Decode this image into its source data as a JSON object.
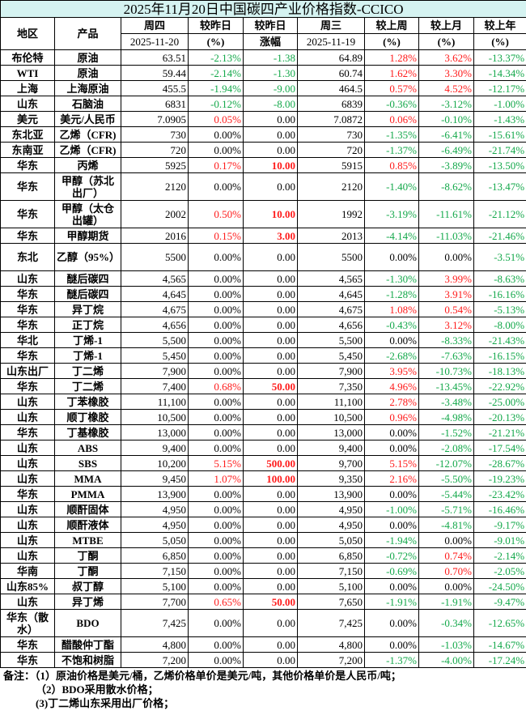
{
  "title": "2025年11月20日中国碳四产业价格指数-CCICO",
  "headers": {
    "region": "地区",
    "product": "产品",
    "thu": "周四",
    "thu_date": "2025-11-20",
    "day_pct": "较昨日",
    "day_pct_unit": "(%)",
    "day_chg": "较昨日",
    "day_chg_unit": "涨幅",
    "wed": "周三",
    "wed_date": "2025-11-19",
    "week": "较上周",
    "week_unit": "(%)",
    "month": "较上月",
    "month_unit": "(%)",
    "year": "较上年",
    "year_unit": "(%)"
  },
  "colors": {
    "up": "#ff1a1a",
    "down": "#13a84a",
    "title_bg": "#d5f3f1"
  },
  "rows": [
    [
      "布伦特",
      "原油",
      "63.51",
      "-2.13%",
      "-1.38",
      "64.89",
      "1.28%",
      "3.62%",
      "-13.37%"
    ],
    [
      "WTI",
      "原油",
      "59.44",
      "-2.14%",
      "-1.30",
      "60.74",
      "1.62%",
      "3.30%",
      "-14.34%"
    ],
    [
      "上海",
      "上海原油",
      "455.5",
      "-1.94%",
      "-9.00",
      "464.5",
      "0.57%",
      "4.52%",
      "-12.17%"
    ],
    [
      "山东",
      "石脑油",
      "6831",
      "-0.12%",
      "-8.00",
      "6839",
      "-0.36%",
      "-3.12%",
      "-1.00%"
    ],
    [
      "美元",
      "美元/人民币",
      "7.0905",
      "0.05%",
      "0.00",
      "7.0872",
      "0.06%",
      "-0.10%",
      "-1.43%"
    ],
    [
      "东北亚",
      "乙烯（CFR)",
      "730",
      "0.00%",
      "0.00",
      "730",
      "-1.35%",
      "-6.41%",
      "-15.61%"
    ],
    [
      "东南亚",
      "乙烯（CFR)",
      "720",
      "0.00%",
      "0.00",
      "720",
      "-1.37%",
      "-6.49%",
      "-21.74%"
    ],
    [
      "华东",
      "丙烯",
      "5925",
      "0.17%",
      "10.00",
      "5915",
      "0.85%",
      "-3.89%",
      "-13.50%"
    ],
    [
      "华东",
      "甲醇（苏北出厂）",
      "2120",
      "0.00%",
      "0.00",
      "2120",
      "-1.40%",
      "-8.62%",
      "-13.47%"
    ],
    [
      "华东",
      "甲醇（太仓出罐）",
      "2002",
      "0.50%",
      "10.00",
      "1992",
      "-3.19%",
      "-11.61%",
      "-21.12%"
    ],
    [
      "华东",
      "甲醇期货",
      "2016",
      "0.15%",
      "3.00",
      "2013",
      "-4.14%",
      "-11.03%",
      "-21.46%"
    ],
    [
      "东北",
      "乙醇（95%）",
      "5500",
      "0.00%",
      "0.00",
      "5500",
      "0.00%",
      "0.00%",
      "-3.51%"
    ],
    [
      "山东",
      "醚后碳四",
      "4,565",
      "0.00%",
      "0.00",
      "4,565",
      "-1.30%",
      "3.99%",
      "-8.63%"
    ],
    [
      "华东",
      "醚后碳四",
      "4,645",
      "0.00%",
      "0.00",
      "4,645",
      "-1.28%",
      "3.91%",
      "-16.16%"
    ],
    [
      "华东",
      "异丁烷",
      "4,675",
      "0.00%",
      "0.00",
      "4,675",
      "1.08%",
      "0.54%",
      "-5.13%"
    ],
    [
      "华东",
      "正丁烷",
      "4,656",
      "0.00%",
      "0.00",
      "4,656",
      "-0.43%",
      "3.12%",
      "-8.00%"
    ],
    [
      "华北",
      "丁烯-1",
      "5,500",
      "0.00%",
      "0.00",
      "5,500",
      "0.00%",
      "-8.33%",
      "-21.43%"
    ],
    [
      "华东",
      "丁烯-1",
      "5,450",
      "0.00%",
      "0.00",
      "5,450",
      "-2.68%",
      "-7.63%",
      "-16.15%"
    ],
    [
      "山东出厂",
      "丁二烯",
      "7,900",
      "0.00%",
      "0.00",
      "7,900",
      "3.95%",
      "-10.73%",
      "-18.13%"
    ],
    [
      "华东",
      "丁二烯",
      "7,400",
      "0.68%",
      "50.00",
      "7,350",
      "4.96%",
      "-13.45%",
      "-22.92%"
    ],
    [
      "山东",
      "丁苯橡胶",
      "11,100",
      "0.00%",
      "0.00",
      "11,100",
      "2.78%",
      "-3.48%",
      "-25.00%"
    ],
    [
      "山东",
      "顺丁橡胶",
      "10,500",
      "0.00%",
      "0.00",
      "10,500",
      "0.96%",
      "-4.98%",
      "-20.13%"
    ],
    [
      "华东",
      "丁基橡胶",
      "13,000",
      "0.00%",
      "0.00",
      "13,000",
      "0.00%",
      "-1.52%",
      "-21.21%"
    ],
    [
      "山东",
      "ABS",
      "9,400",
      "0.00%",
      "0.00",
      "9,400",
      "0.00%",
      "-2.08%",
      "-17.54%"
    ],
    [
      "山东",
      "SBS",
      "10,200",
      "5.15%",
      "500.00",
      "9,700",
      "5.15%",
      "-12.07%",
      "-28.67%"
    ],
    [
      "山东",
      "MMA",
      "9,450",
      "1.07%",
      "100.00",
      "9,350",
      "2.16%",
      "-5.50%",
      "-19.23%"
    ],
    [
      "华东",
      "PMMA",
      "13,900",
      "0.00%",
      "0.00",
      "13,900",
      "0.00%",
      "-5.44%",
      "-23.42%"
    ],
    [
      "山东",
      "顺酐固体",
      "4,950",
      "0.00%",
      "0.00",
      "4,950",
      "-1.00%",
      "-5.71%",
      "-16.46%"
    ],
    [
      "山东",
      "顺酐液体",
      "4,950",
      "0.00%",
      "0.00",
      "4,950",
      "0.00%",
      "-4.81%",
      "-9.17%"
    ],
    [
      "山东",
      "MTBE",
      "5,050",
      "0.00%",
      "0.00",
      "5,050",
      "-1.94%",
      "0.00%",
      "-9.01%"
    ],
    [
      "山东",
      "丁酮",
      "6,850",
      "0.00%",
      "0.00",
      "6,850",
      "-0.72%",
      "0.74%",
      "-2.14%"
    ],
    [
      "华南",
      "丁酮",
      "7,150",
      "0.00%",
      "0.00",
      "7,150",
      "-0.69%",
      "0.70%",
      "-2.05%"
    ],
    [
      "山东85%",
      "叔丁醇",
      "5,100",
      "0.00%",
      "0.00",
      "5,100",
      "0.00%",
      "0.00%",
      "-24.50%"
    ],
    [
      "山东",
      "异丁烯",
      "7,700",
      "0.65%",
      "50.00",
      "7,650",
      "-1.91%",
      "-1.91%",
      "-9.47%"
    ],
    [
      "华东（散水）",
      "BDO",
      "7,425",
      "0.00%",
      "0.00",
      "7,425",
      "0.00%",
      "-0.34%",
      "-12.65%"
    ],
    [
      "华东",
      "醋酸仲丁酯",
      "4,800",
      "0.00%",
      "0.00",
      "4,800",
      "0.00%",
      "-1.03%",
      "-14.67%"
    ],
    [
      "华东",
      "不饱和树脂",
      "7,200",
      "0.00%",
      "0.00",
      "7,200",
      "-1.37%",
      "-4.00%",
      "-17.24%"
    ]
  ],
  "notes": {
    "label": "备注：",
    "n1": "（1）原油价格是美元/桶，乙烯价格单价是美元/吨，其他价格单价是人民币/吨；",
    "n2": "（2）BDO采用散水价格；",
    "n3": "(3)丁二烯山东采用出厂价格；"
  }
}
